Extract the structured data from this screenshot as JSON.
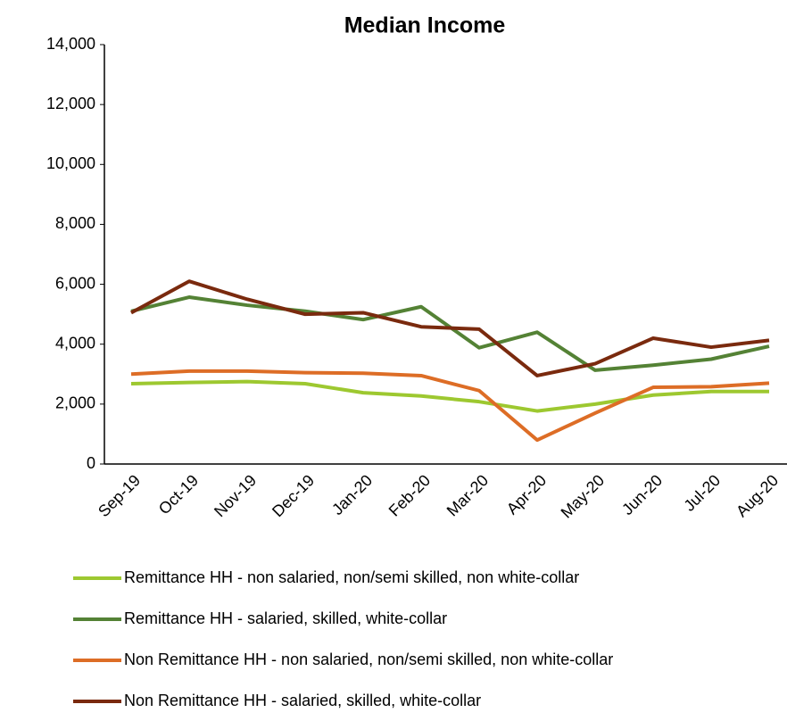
{
  "chart_data": {
    "type": "line",
    "title": "Median Income",
    "categories": [
      "Sep-19",
      "Oct-19",
      "Nov-19",
      "Dec-19",
      "Jan-20",
      "Feb-20",
      "Mar-20",
      "Apr-20",
      "May-20",
      "Jun-20",
      "Jul-20",
      "Aug-20"
    ],
    "series": [
      {
        "name": "Remittance HH - non salaried, non/semi skilled, non white-collar",
        "color": "#9dc830",
        "values": [
          2680,
          2720,
          2750,
          2680,
          2380,
          2270,
          2080,
          1770,
          2000,
          2300,
          2420,
          2420
        ]
      },
      {
        "name": "Remittance HH - salaried, skilled, white-collar",
        "color": "#548235",
        "values": [
          5100,
          5570,
          5300,
          5100,
          4820,
          5250,
          3880,
          4400,
          3130,
          3300,
          3500,
          3930
        ]
      },
      {
        "name": "Non Remittance HH - non salaried, non/semi skilled, non white-collar",
        "color": "#dd6d26",
        "values": [
          3000,
          3100,
          3100,
          3050,
          3030,
          2950,
          2450,
          800,
          1700,
          2560,
          2580,
          2700
        ]
      },
      {
        "name": "Non Remittance HH - salaried, skilled, white-collar",
        "color": "#7a2a0e",
        "values": [
          5050,
          6100,
          5500,
          5000,
          5050,
          4580,
          4500,
          2950,
          3350,
          4200,
          3900,
          4130
        ]
      }
    ],
    "ylim": [
      0,
      14000
    ],
    "yticks": [
      0,
      {
        "value": 2000,
        "label": "2,000"
      },
      {
        "value": 4000,
        "label": "4,000"
      },
      {
        "value": 6000,
        "label": "6,000"
      },
      {
        "value": 8000,
        "label": "8,000"
      },
      {
        "value": 10000,
        "label": "10,000"
      },
      {
        "value": 12000,
        "label": "12,000"
      },
      {
        "value": 14000,
        "label": "14,000"
      }
    ],
    "grid": false,
    "legend": "bottom"
  }
}
